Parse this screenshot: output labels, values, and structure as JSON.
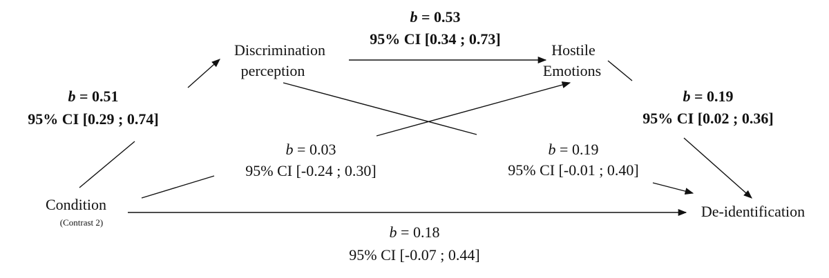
{
  "nodes": [
    {
      "lines": [
        "Discrimination",
        "perception"
      ]
    },
    {
      "lines": [
        "Hostile",
        "Emotions"
      ]
    },
    {
      "lines": [
        "Condition",
        "(Contrast 2)"
      ]
    },
    {
      "lines": [
        "De-identification"
      ]
    }
  ],
  "paths": [
    {
      "symbol": "b",
      "estimate": "= 0.51",
      "ci": "95% CI [0.29 ; 0.74]"
    },
    {
      "symbol": "b",
      "estimate": "= 0.53",
      "ci": "95% CI [0.34 ; 0.73]"
    },
    {
      "symbol": "b",
      "estimate": "= 0.19",
      "ci": "95% CI [0.02 ; 0.36]"
    },
    {
      "symbol": "b",
      "estimate": "= 0.03",
      "ci": "95% CI [-0.24 ; 0.30]"
    },
    {
      "symbol": "b",
      "estimate": "= 0.19",
      "ci": "95% CI [-0.01 ; 0.40]"
    },
    {
      "symbol": "b",
      "estimate": "= 0.18",
      "ci": "95% CI [-0.07 ; 0.44]"
    }
  ]
}
